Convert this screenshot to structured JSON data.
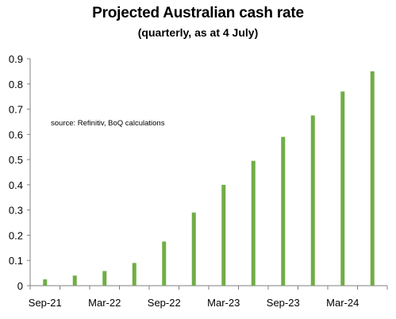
{
  "chart_data": {
    "type": "bar",
    "title": "Projected Australian cash rate",
    "subtitle": "(quarterly, as at 4 July)",
    "annotation": "source: Refinitiv, BoQ calculations",
    "xlabel": "",
    "ylabel": "",
    "ylim": [
      0,
      0.9
    ],
    "yticks": [
      "0",
      "0.1",
      "0.2",
      "0.3",
      "0.4",
      "0.5",
      "0.6",
      "0.7",
      "0.8",
      "0.9"
    ],
    "grid": false,
    "legend": "none",
    "categories": [
      "Sep-21",
      "Dec-21",
      "Mar-22",
      "Jun-22",
      "Sep-22",
      "Dec-22",
      "Mar-23",
      "Jun-23",
      "Sep-23",
      "Dec-23",
      "Mar-24",
      "Jun-24"
    ],
    "x_tick_labels": [
      "Sep-21",
      "Mar-22",
      "Sep-22",
      "Mar-23",
      "Sep-23",
      "Mar-24"
    ],
    "values": [
      0.025,
      0.04,
      0.058,
      0.09,
      0.175,
      0.29,
      0.4,
      0.495,
      0.59,
      0.675,
      0.77,
      0.85
    ],
    "bar_color": "#70AD47",
    "axis_color": "#808080"
  }
}
